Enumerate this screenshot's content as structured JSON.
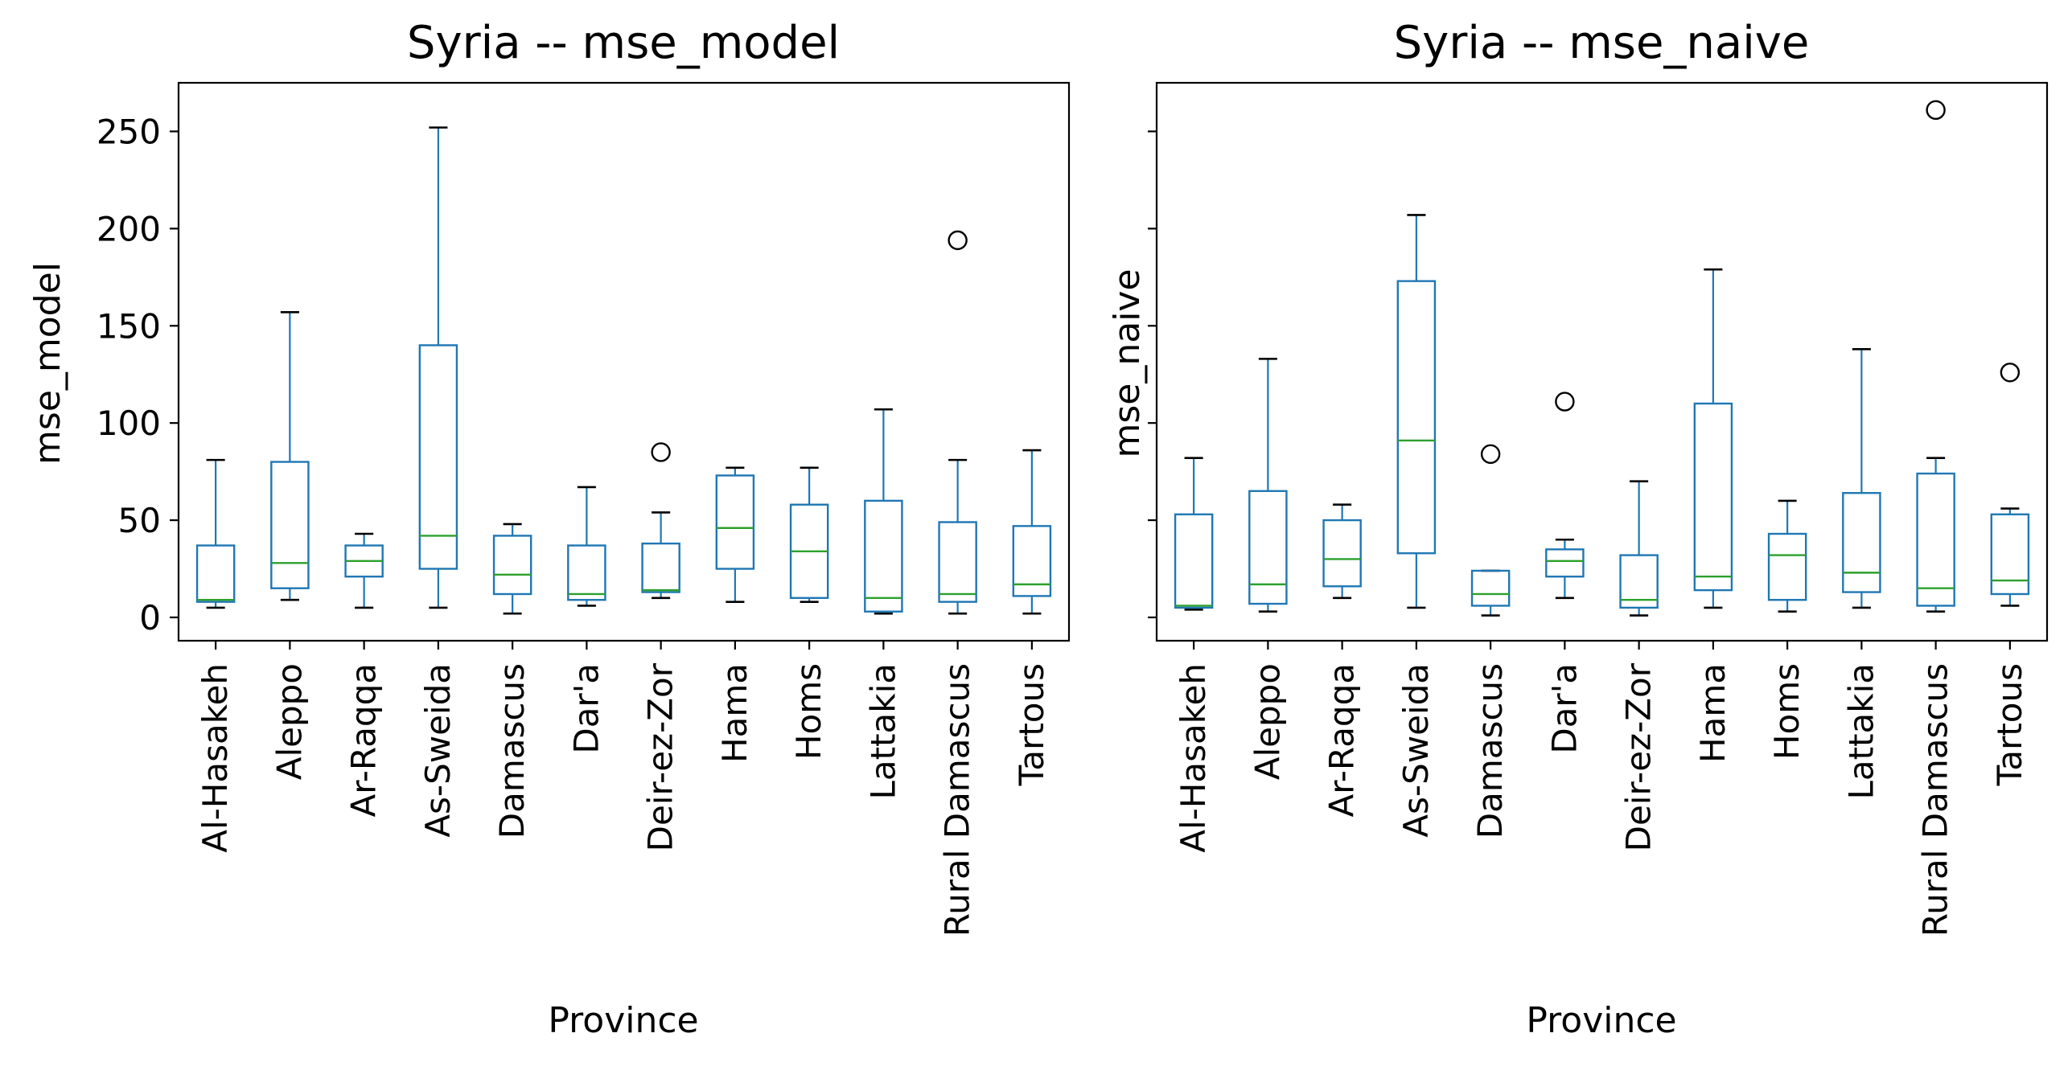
{
  "chart_data": [
    {
      "type": "box",
      "title": "Syria -- mse_model",
      "xlabel": "Province",
      "ylabel": "mse_model",
      "ylim": [
        -12,
        275
      ],
      "yticks": [
        0,
        50,
        100,
        150,
        200,
        250
      ],
      "show_ytick_labels": true,
      "grid": false,
      "categories": [
        "Al-Hasakeh",
        "Aleppo",
        "Ar-Raqqa",
        "As-Sweida",
        "Damascus",
        "Dar'a",
        "Deir-ez-Zor",
        "Hama",
        "Homs",
        "Lattakia",
        "Rural Damascus",
        "Tartous"
      ],
      "boxes": [
        {
          "whislo": 5,
          "q1": 8,
          "med": 9,
          "q3": 37,
          "whishi": 81,
          "fliers": []
        },
        {
          "whislo": 9,
          "q1": 15,
          "med": 28,
          "q3": 80,
          "whishi": 157,
          "fliers": []
        },
        {
          "whislo": 5,
          "q1": 21,
          "med": 29,
          "q3": 37,
          "whishi": 43,
          "fliers": []
        },
        {
          "whislo": 5,
          "q1": 25,
          "med": 42,
          "q3": 140,
          "whishi": 252,
          "fliers": []
        },
        {
          "whislo": 2,
          "q1": 12,
          "med": 22,
          "q3": 42,
          "whishi": 48,
          "fliers": []
        },
        {
          "whislo": 6,
          "q1": 9,
          "med": 12,
          "q3": 37,
          "whishi": 67,
          "fliers": []
        },
        {
          "whislo": 10,
          "q1": 13,
          "med": 14,
          "q3": 38,
          "whishi": 54,
          "fliers": [
            85
          ]
        },
        {
          "whislo": 8,
          "q1": 25,
          "med": 46,
          "q3": 73,
          "whishi": 77,
          "fliers": []
        },
        {
          "whislo": 8,
          "q1": 10,
          "med": 34,
          "q3": 58,
          "whishi": 77,
          "fliers": []
        },
        {
          "whislo": 2,
          "q1": 3,
          "med": 10,
          "q3": 60,
          "whishi": 107,
          "fliers": []
        },
        {
          "whislo": 2,
          "q1": 8,
          "med": 12,
          "q3": 49,
          "whishi": 81,
          "fliers": [
            194
          ]
        },
        {
          "whislo": 2,
          "q1": 11,
          "med": 17,
          "q3": 47,
          "whishi": 86,
          "fliers": []
        }
      ]
    },
    {
      "type": "box",
      "title": "Syria -- mse_naive",
      "xlabel": "Province",
      "ylabel": "mse_naive",
      "ylim": [
        -12,
        275
      ],
      "yticks": [
        0,
        50,
        100,
        150,
        200,
        250
      ],
      "show_ytick_labels": false,
      "grid": false,
      "categories": [
        "Al-Hasakeh",
        "Aleppo",
        "Ar-Raqqa",
        "As-Sweida",
        "Damascus",
        "Dar'a",
        "Deir-ez-Zor",
        "Hama",
        "Homs",
        "Lattakia",
        "Rural Damascus",
        "Tartous"
      ],
      "boxes": [
        {
          "whislo": 4,
          "q1": 5,
          "med": 6,
          "q3": 53,
          "whishi": 82,
          "fliers": []
        },
        {
          "whislo": 3,
          "q1": 7,
          "med": 17,
          "q3": 65,
          "whishi": 133,
          "fliers": []
        },
        {
          "whislo": 10,
          "q1": 16,
          "med": 30,
          "q3": 50,
          "whishi": 58,
          "fliers": []
        },
        {
          "whislo": 5,
          "q1": 33,
          "med": 91,
          "q3": 173,
          "whishi": 207,
          "fliers": []
        },
        {
          "whislo": 1,
          "q1": 6,
          "med": 12,
          "q3": 24,
          "whishi": 24,
          "fliers": [
            84
          ]
        },
        {
          "whislo": 10,
          "q1": 21,
          "med": 29,
          "q3": 35,
          "whishi": 40,
          "fliers": [
            111
          ]
        },
        {
          "whislo": 1,
          "q1": 5,
          "med": 9,
          "q3": 32,
          "whishi": 70,
          "fliers": []
        },
        {
          "whislo": 5,
          "q1": 14,
          "med": 21,
          "q3": 110,
          "whishi": 179,
          "fliers": []
        },
        {
          "whislo": 3,
          "q1": 9,
          "med": 32,
          "q3": 43,
          "whishi": 60,
          "fliers": []
        },
        {
          "whislo": 5,
          "q1": 13,
          "med": 23,
          "q3": 64,
          "whishi": 138,
          "fliers": []
        },
        {
          "whislo": 3,
          "q1": 6,
          "med": 15,
          "q3": 74,
          "whishi": 82,
          "fliers": [
            261
          ]
        },
        {
          "whislo": 6,
          "q1": 12,
          "med": 19,
          "q3": 53,
          "whishi": 56,
          "fliers": [
            126
          ]
        }
      ]
    }
  ],
  "colors": {
    "box": "#1f77b4",
    "median": "#2ca02c",
    "axes": "#000000",
    "flier": "#000000"
  }
}
